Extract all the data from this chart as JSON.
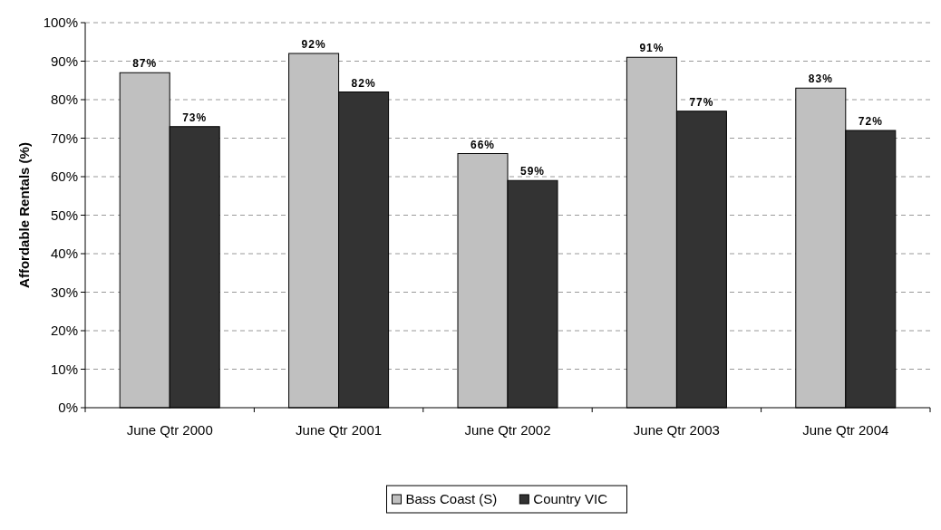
{
  "chart_data": {
    "type": "bar",
    "ylabel": "Affordable Rentals (%)",
    "categories": [
      "June Qtr 2000",
      "June Qtr 2001",
      "June Qtr 2002",
      "June Qtr 2003",
      "June Qtr 2004"
    ],
    "series": [
      {
        "name": "Bass Coast (S)",
        "color": "#c0c0c0",
        "values": [
          87,
          92,
          66,
          91,
          83
        ],
        "value_labels": [
          "87%",
          "92%",
          "66%",
          "91%",
          "83%"
        ]
      },
      {
        "name": "Country VIC",
        "color": "#333333",
        "values": [
          73,
          82,
          59,
          77,
          72
        ],
        "value_labels": [
          "73%",
          "82%",
          "59%",
          "77%",
          "72%"
        ]
      }
    ],
    "ylim": [
      0,
      100
    ],
    "yticks": [
      {
        "value": 0,
        "label": "0%"
      },
      {
        "value": 10,
        "label": "10%"
      },
      {
        "value": 20,
        "label": "20%"
      },
      {
        "value": 30,
        "label": "30%"
      },
      {
        "value": 40,
        "label": "40%"
      },
      {
        "value": 50,
        "label": "50%"
      },
      {
        "value": 60,
        "label": "60%"
      },
      {
        "value": 70,
        "label": "70%"
      },
      {
        "value": 80,
        "label": "80%"
      },
      {
        "value": 90,
        "label": "90%"
      },
      {
        "value": 100,
        "label": "100%"
      }
    ],
    "grid": "y",
    "legend": "bottom"
  }
}
